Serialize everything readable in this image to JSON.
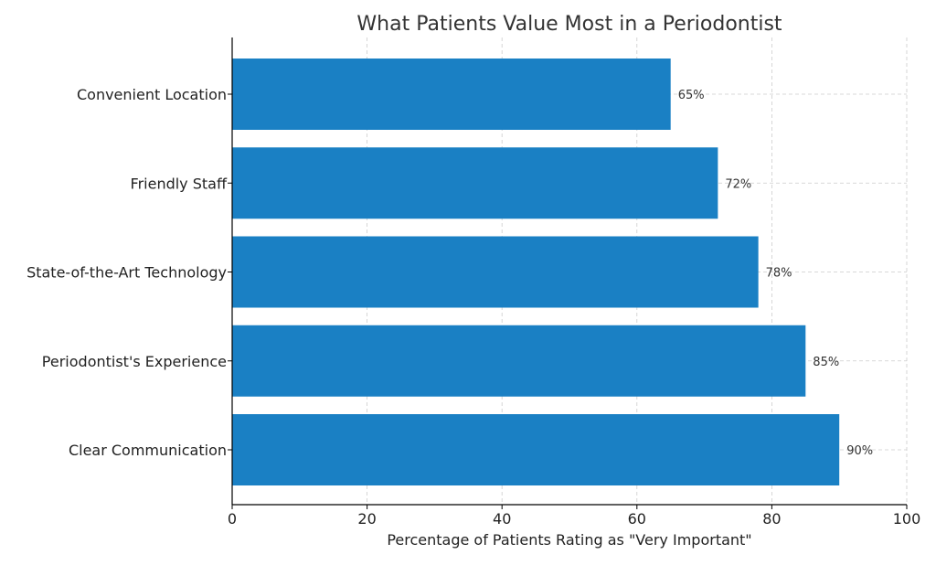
{
  "chart_data": {
    "type": "bar",
    "orientation": "horizontal",
    "title": "What Patients Value Most in a Periodontist",
    "xlabel": "Percentage of Patients Rating as \"Very Important\"",
    "ylabel": "",
    "categories": [
      "Convenient Location",
      "Friendly Staff",
      "State-of-the-Art Technology",
      "Periodontist's Experience",
      "Clear Communication"
    ],
    "values": [
      65,
      72,
      78,
      85,
      90
    ],
    "value_labels": [
      "65%",
      "72%",
      "78%",
      "85%",
      "90%"
    ],
    "xlim": [
      0,
      100
    ],
    "xticks": [
      0,
      20,
      40,
      60,
      80,
      100
    ],
    "xtick_labels": [
      "0",
      "20",
      "40",
      "60",
      "80",
      "100"
    ],
    "grid": true,
    "bar_color": "#1a80c4",
    "grid_color": "#cccccc",
    "axis_color": "#000000"
  }
}
